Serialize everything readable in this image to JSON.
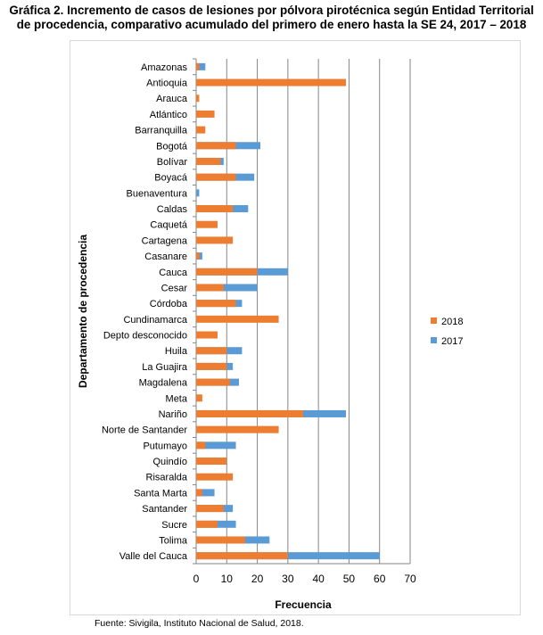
{
  "title_line1": "Gráfica 2. Incremento de casos de lesiones por pólvora pirotécnica según Entidad Territorial",
  "title_line2": "de procedencia, comparativo acumulado del primero de enero hasta la SE 24, 2017 – 2018",
  "footer": "Fuente: Sivigila,  Instituto Nacional de Salud, 2018.",
  "chart_data": {
    "type": "bar",
    "orientation": "horizontal",
    "overlap": true,
    "xlabel": "Frecuencia",
    "ylabel": "Departamento de procedencia",
    "xlim": [
      0,
      70
    ],
    "xticks": [
      0,
      10,
      20,
      30,
      40,
      50,
      60,
      70
    ],
    "grid": true,
    "legend_position": "right",
    "categories": [
      "Amazonas",
      "Antioquia",
      "Arauca",
      "Atlántico",
      "Barranquilla",
      "Bogotá",
      "Bolívar",
      "Boyacá",
      "Buenaventura",
      "Caldas",
      "Caquetá",
      "Cartagena",
      "Casanare",
      "Cauca",
      "Cesar",
      "Córdoba",
      "Cundinamarca",
      "Depto desconocido",
      "Huila",
      "La Guajira",
      "Magdalena",
      "Meta",
      "Nariño",
      "Norte de Santander",
      "Putumayo",
      "Quindío",
      "Risaralda",
      "Santa Marta",
      "Santander",
      "Sucre",
      "Tolima",
      "Valle del Cauca"
    ],
    "series": [
      {
        "name": "2017",
        "color": "#5b9bd5",
        "values": [
          3,
          null,
          null,
          null,
          null,
          21,
          9,
          19,
          1,
          17,
          null,
          null,
          2,
          30,
          20,
          15,
          null,
          null,
          15,
          12,
          14,
          null,
          49,
          null,
          13,
          null,
          null,
          6,
          12,
          13,
          24,
          60
        ]
      },
      {
        "name": "2018",
        "color": "#ed7d31",
        "values": [
          1,
          49,
          1,
          6,
          3,
          13,
          8,
          13,
          0,
          12,
          7,
          12,
          1,
          20,
          9,
          13,
          27,
          7,
          10,
          10,
          11,
          2,
          35,
          27,
          3,
          10,
          12,
          2,
          9,
          7,
          16,
          30
        ]
      }
    ]
  }
}
